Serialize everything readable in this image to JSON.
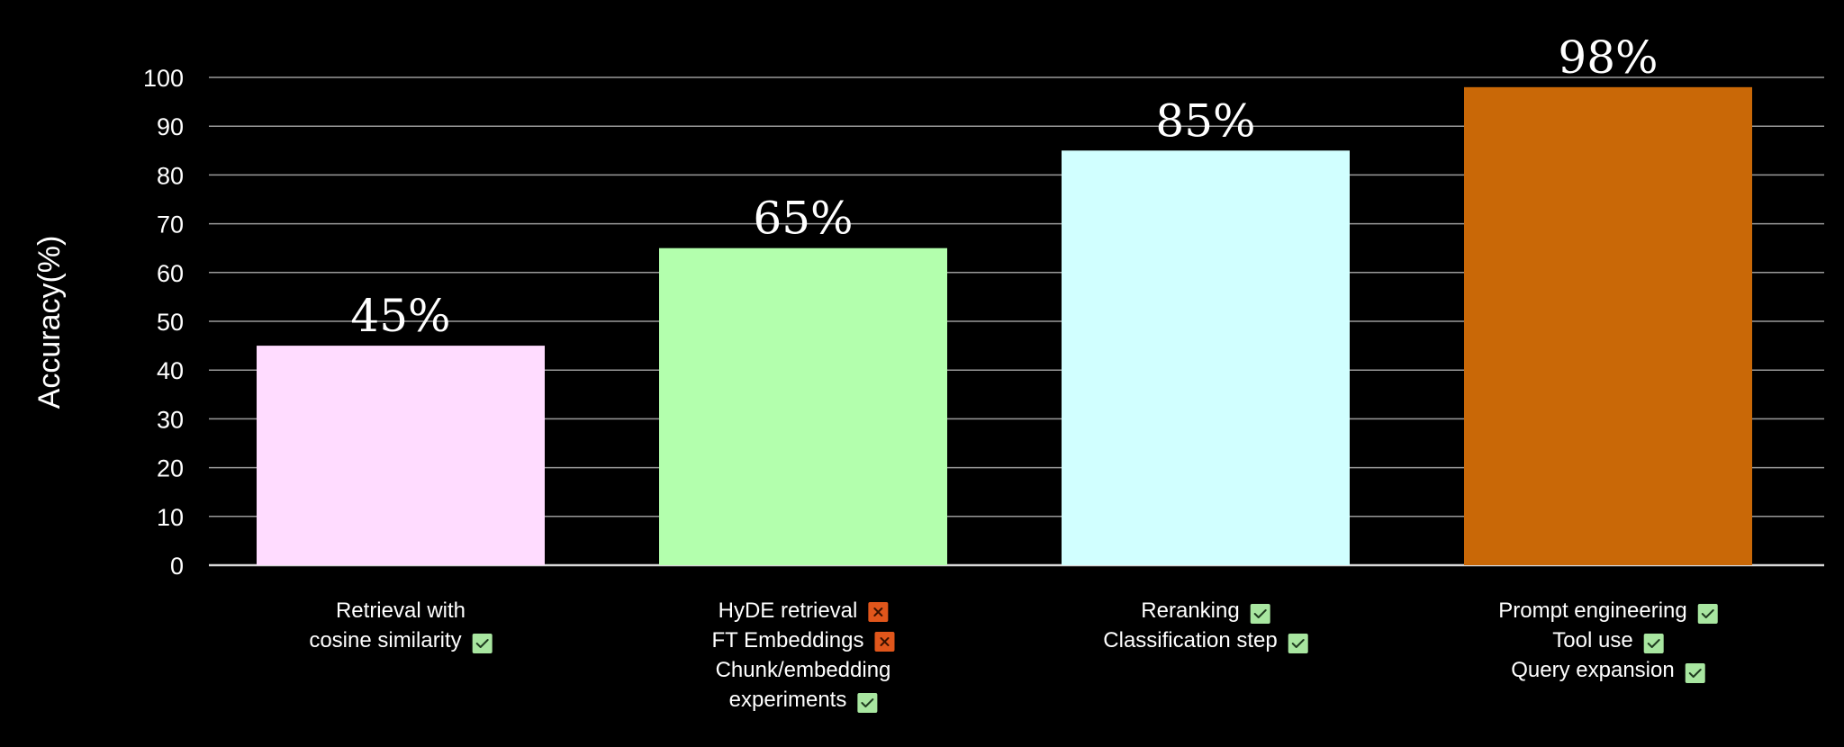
{
  "chart_data": {
    "type": "bar",
    "title": "",
    "ylabel": "Accuracy(%)",
    "xlabel": "",
    "ylim": [
      0,
      100
    ],
    "yticks": [
      0,
      10,
      20,
      30,
      40,
      50,
      60,
      70,
      80,
      90,
      100
    ],
    "grid": true,
    "values": [
      45,
      65,
      85,
      98
    ],
    "data_labels": [
      "45%",
      "65%",
      "85%",
      "98%"
    ],
    "bar_colors": [
      "#ffdcff",
      "#b3ffad",
      "#d1ffff",
      "#c96807"
    ],
    "check_color": "#a8e6a0",
    "cross_color": "#e0561b",
    "categories": [
      {
        "lines": [
          {
            "text": "Retrieval with",
            "status": ""
          },
          {
            "text": "cosine similarity",
            "status": "check"
          }
        ]
      },
      {
        "lines": [
          {
            "text": "HyDE retrieval",
            "status": "cross"
          },
          {
            "text": "FT Embeddings",
            "status": "cross"
          },
          {
            "text": "Chunk/embedding",
            "status": ""
          },
          {
            "text": "experiments",
            "status": "check"
          }
        ]
      },
      {
        "lines": [
          {
            "text": "Reranking",
            "status": "check"
          },
          {
            "text": "Classification step",
            "status": "check"
          }
        ]
      },
      {
        "lines": [
          {
            "text": "Prompt engineering",
            "status": "check"
          },
          {
            "text": "Tool use",
            "status": "check"
          },
          {
            "text": "Query expansion",
            "status": "check"
          }
        ]
      }
    ]
  }
}
